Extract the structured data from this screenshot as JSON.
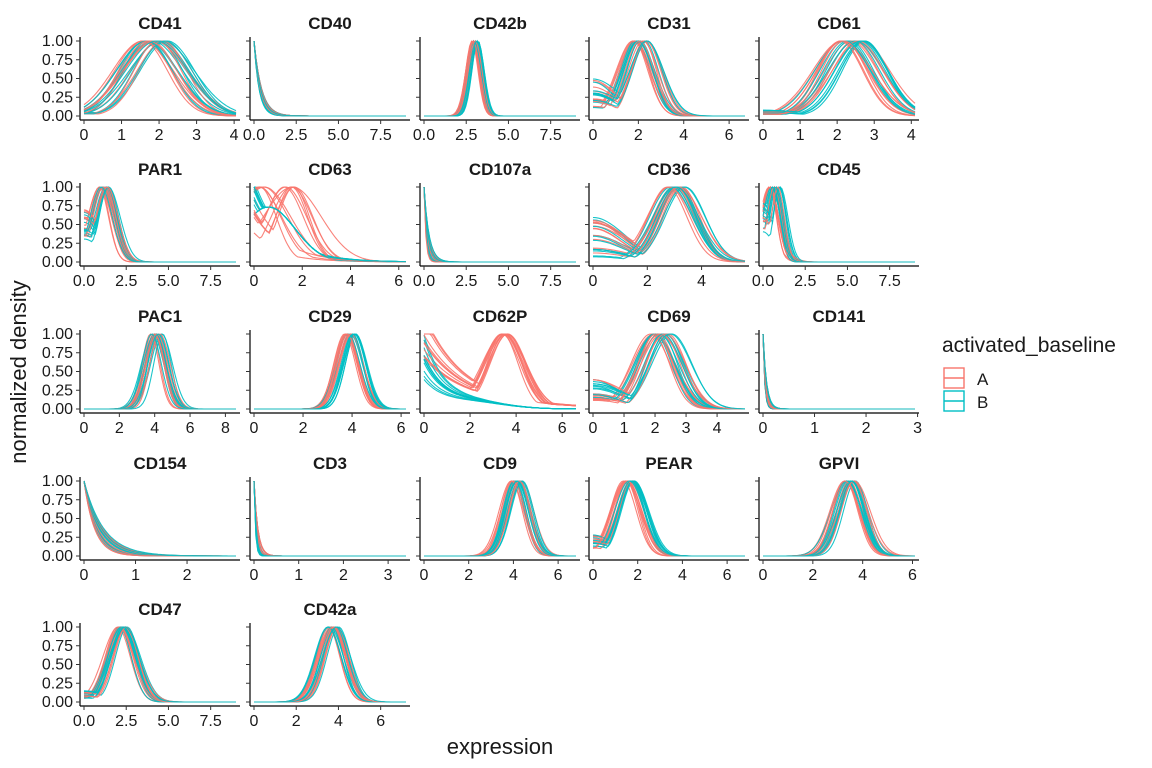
{
  "chart_data": {
    "type": "line",
    "title": "",
    "xlabel": "expression",
    "ylabel": "normalized density",
    "y_ticks": [
      "0.00",
      "0.25",
      "0.50",
      "0.75",
      "1.00"
    ],
    "legend": {
      "title": "activated_baseline",
      "placement": "right",
      "items": [
        {
          "label": "A",
          "color": "#F8766D"
        },
        {
          "label": "B",
          "color": "#00BFC4"
        }
      ]
    },
    "panels": [
      {
        "name": "CD41",
        "xlim": [
          0,
          4.05
        ],
        "x_ticks": [
          0,
          1,
          2,
          3,
          4
        ],
        "shape": "bell",
        "center": [
          1.9,
          0.35
        ],
        "width": [
          0.75,
          0.12
        ],
        "baseline": [
          0.02,
          0.05
        ]
      },
      {
        "name": "CD40",
        "xlim": [
          0,
          9
        ],
        "x_ticks": [
          0,
          2.5,
          5,
          7.5
        ],
        "tick_labels": [
          "0.0",
          "2.5",
          "5.0",
          "7.5"
        ],
        "shape": "decay",
        "center": [
          0,
          0.05
        ],
        "width": [
          0.35,
          0.1
        ],
        "baseline": [
          0,
          0
        ]
      },
      {
        "name": "CD42b",
        "xlim": [
          0,
          9
        ],
        "x_ticks": [
          0,
          2.5,
          5,
          7.5
        ],
        "tick_labels": [
          "0.0",
          "2.5",
          "5.0",
          "7.5"
        ],
        "shape": "bell",
        "center": [
          3.0,
          0.15
        ],
        "width": [
          0.38,
          0.04
        ],
        "baseline": [
          0,
          0
        ]
      },
      {
        "name": "CD31",
        "xlim": [
          0,
          6.7
        ],
        "x_ticks": [
          0,
          2,
          4,
          6
        ],
        "shape": "bell",
        "center": [
          2.1,
          0.35
        ],
        "width": [
          0.65,
          0.1
        ],
        "baseline": [
          0.05,
          0.5
        ]
      },
      {
        "name": "CD61",
        "xlim": [
          0,
          4.1
        ],
        "x_ticks": [
          0,
          1,
          2,
          3,
          4
        ],
        "shape": "bell",
        "center": [
          2.4,
          0.3
        ],
        "width": [
          0.7,
          0.1
        ],
        "baseline": [
          0.02,
          0.08
        ]
      },
      {
        "name": "PAR1",
        "xlim": [
          0,
          9
        ],
        "x_ticks": [
          0,
          2.5,
          5,
          7.5
        ],
        "tick_labels": [
          "0.0",
          "2.5",
          "5.0",
          "7.5"
        ],
        "shape": "bell",
        "center": [
          1.2,
          0.25
        ],
        "width": [
          0.6,
          0.1
        ],
        "baseline": [
          0.3,
          0.7
        ]
      },
      {
        "name": "CD63",
        "xlim": [
          0,
          6.3
        ],
        "x_ticks": [
          0,
          2,
          4,
          6
        ],
        "shape": "spread",
        "center": [
          1.0,
          0.8
        ],
        "width": [
          0.9,
          0.3
        ],
        "baseline": [
          0.3,
          0.9
        ]
      },
      {
        "name": "CD107a",
        "xlim": [
          0,
          9
        ],
        "x_ticks": [
          0,
          2.5,
          5,
          7.5
        ],
        "tick_labels": [
          "0.0",
          "2.5",
          "5.0",
          "7.5"
        ],
        "shape": "decay",
        "center": [
          0,
          0.05
        ],
        "width": [
          0.2,
          0.1
        ],
        "baseline": [
          0,
          0
        ]
      },
      {
        "name": "CD36",
        "xlim": [
          0,
          5.6
        ],
        "x_ticks": [
          0,
          2,
          4
        ],
        "shape": "bell",
        "center": [
          3.1,
          0.35
        ],
        "width": [
          0.75,
          0.1
        ],
        "baseline": [
          0.05,
          0.6
        ]
      },
      {
        "name": "CD45",
        "xlim": [
          0,
          9
        ],
        "x_ticks": [
          0,
          2.5,
          5,
          7.5
        ],
        "tick_labels": [
          "0.0",
          "2.5",
          "5.0",
          "7.5"
        ],
        "shape": "bell",
        "center": [
          0.7,
          0.3
        ],
        "width": [
          0.45,
          0.1
        ],
        "baseline": [
          0.4,
          0.8
        ]
      },
      {
        "name": "PAC1",
        "xlim": [
          0,
          8.6
        ],
        "x_ticks": [
          0,
          2,
          4,
          6,
          8
        ],
        "shape": "bell",
        "center": [
          4.1,
          0.35
        ],
        "width": [
          0.55,
          0.08
        ],
        "baseline": [
          0,
          0
        ]
      },
      {
        "name": "CD29",
        "xlim": [
          0,
          6.2
        ],
        "x_ticks": [
          0,
          2,
          4,
          6
        ],
        "shape": "bell",
        "center": [
          3.9,
          0.2
        ],
        "width": [
          0.45,
          0.05
        ],
        "baseline": [
          0,
          0
        ]
      },
      {
        "name": "CD62P",
        "xlim": [
          0,
          6.6
        ],
        "x_ticks": [
          0,
          2,
          4,
          6
        ],
        "shape": "bimodal",
        "center": [
          3.8,
          0.4
        ],
        "width": [
          0.8,
          0.15
        ],
        "baseline": [
          0.3,
          1.0
        ]
      },
      {
        "name": "CD69",
        "xlim": [
          0,
          4.9
        ],
        "x_ticks": [
          0,
          1,
          2,
          3,
          4
        ],
        "shape": "bell",
        "center": [
          2.2,
          0.3
        ],
        "width": [
          0.6,
          0.1
        ],
        "baseline": [
          0.1,
          0.4
        ]
      },
      {
        "name": "CD141",
        "xlim": [
          0,
          2.95
        ],
        "x_ticks": [
          0,
          1,
          2,
          3
        ],
        "shape": "decay",
        "center": [
          0,
          0.02
        ],
        "width": [
          0.05,
          0.02
        ],
        "baseline": [
          0,
          0
        ]
      },
      {
        "name": "CD154",
        "xlim": [
          0,
          2.95
        ],
        "x_ticks": [
          0,
          1,
          2
        ],
        "shape": "decay",
        "center": [
          0,
          0.05
        ],
        "width": [
          0.3,
          0.1
        ],
        "baseline": [
          0,
          0
        ]
      },
      {
        "name": "CD3",
        "xlim": [
          0,
          3.4
        ],
        "x_ticks": [
          0,
          1,
          2,
          3
        ],
        "shape": "decay",
        "center": [
          0,
          0.02
        ],
        "width": [
          0.06,
          0.03
        ],
        "baseline": [
          0,
          0
        ]
      },
      {
        "name": "CD9",
        "xlim": [
          0,
          6.8
        ],
        "x_ticks": [
          0,
          2,
          4,
          6
        ],
        "shape": "bell",
        "center": [
          4.2,
          0.25
        ],
        "width": [
          0.5,
          0.05
        ],
        "baseline": [
          0,
          0
        ]
      },
      {
        "name": "PEAR",
        "xlim": [
          0,
          6.8
        ],
        "x_ticks": [
          0,
          2,
          4,
          6
        ],
        "shape": "bell",
        "center": [
          1.6,
          0.2
        ],
        "width": [
          0.6,
          0.08
        ],
        "baseline": [
          0.1,
          0.3
        ]
      },
      {
        "name": "GPVI",
        "xlim": [
          0,
          6.1
        ],
        "x_ticks": [
          0,
          2,
          4,
          6
        ],
        "shape": "bell",
        "center": [
          3.5,
          0.25
        ],
        "width": [
          0.55,
          0.08
        ],
        "baseline": [
          0,
          0
        ]
      },
      {
        "name": "CD47",
        "xlim": [
          0,
          9
        ],
        "x_ticks": [
          0,
          2.5,
          5,
          7.5
        ],
        "tick_labels": [
          "0.0",
          "2.5",
          "5.0",
          "7.5"
        ],
        "shape": "bell",
        "center": [
          2.3,
          0.3
        ],
        "width": [
          0.8,
          0.12
        ],
        "baseline": [
          0.05,
          0.15
        ]
      },
      {
        "name": "CD42a",
        "xlim": [
          0,
          7.2
        ],
        "x_ticks": [
          0,
          2,
          4,
          6
        ],
        "shape": "bell",
        "center": [
          3.7,
          0.3
        ],
        "width": [
          0.6,
          0.06
        ],
        "baseline": [
          0,
          0
        ]
      }
    ]
  }
}
